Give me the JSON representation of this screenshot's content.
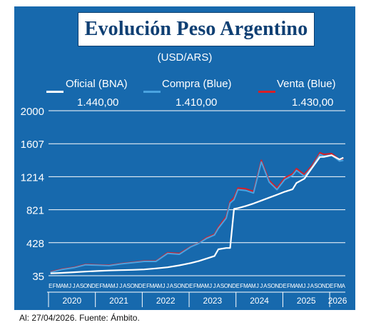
{
  "header": {
    "title": "Evolución Peso Argentino",
    "unit": "(USD/ARS)"
  },
  "legend": [
    {
      "name": "Oficial (BNA)",
      "value": "1.440,00",
      "color": "#ffffff"
    },
    {
      "name": "Compra (Blue)",
      "value": "1.410,00",
      "color": "#4aa3e0"
    },
    {
      "name": "Venta (Blue)",
      "value": "1.430,00",
      "color": "#d91f26"
    }
  ],
  "footer": {
    "source": "Al: 27/04/2026. Fuente: Ámbito."
  },
  "colors": {
    "panel": "#1769ad",
    "title_text": "#0f3f73",
    "oficial": "#ffffff",
    "compra": "#4aa3e0",
    "venta": "#d91f26",
    "grid": "#ffffff"
  },
  "chart_data": {
    "type": "line",
    "title": "Evolución Peso Argentino",
    "subtitle": "(USD/ARS)",
    "ylim": [
      35,
      2000
    ],
    "yticks": [
      35,
      428,
      821,
      1214,
      1607,
      2000
    ],
    "ytick_labels": [
      "35",
      "428",
      "821",
      "1214",
      "1607",
      "2000"
    ],
    "grid": true,
    "legend_position": "top",
    "x_months": [
      "E",
      "F",
      "M",
      "A",
      "M",
      "J",
      "J",
      "A",
      "S",
      "O",
      "N",
      "D"
    ],
    "years": [
      "2020",
      "2021",
      "2022",
      "2023",
      "2024",
      "2025",
      "2026"
    ],
    "x_last_year_months": [
      "E",
      "F",
      "M",
      "A"
    ],
    "x": [
      "2020-01",
      "2020-04",
      "2020-07",
      "2020-10",
      "2021-01",
      "2021-04",
      "2021-07",
      "2021-10",
      "2022-01",
      "2022-04",
      "2022-07",
      "2022-10",
      "2023-01",
      "2023-03",
      "2023-05",
      "2023-07",
      "2023-08",
      "2023-10",
      "2023-11",
      "2023-12",
      "2024-01",
      "2024-03",
      "2024-05",
      "2024-07",
      "2024-09",
      "2024-11",
      "2025-01",
      "2025-03",
      "2025-04",
      "2025-06",
      "2025-08",
      "2025-10",
      "2025-11",
      "2026-01",
      "2026-03",
      "2026-04"
    ],
    "series": [
      {
        "name": "Oficial (BNA)",
        "values": [
          63,
          69,
          77,
          84,
          91,
          97,
          101,
          105,
          110,
          122,
          135,
          158,
          186,
          210,
          240,
          270,
          350,
          365,
          366,
          830,
          840,
          865,
          895,
          930,
          965,
          1000,
          1035,
          1065,
          1140,
          1190,
          1320,
          1450,
          1450,
          1470,
          1420,
          1440
        ]
      },
      {
        "name": "Compra (Blue)",
        "values": [
          75,
          110,
          130,
          165,
          160,
          155,
          175,
          190,
          205,
          205,
          300,
          290,
          380,
          420,
          480,
          520,
          600,
          720,
          900,
          940,
          1060,
          1050,
          1020,
          1390,
          1150,
          1060,
          1180,
          1230,
          1290,
          1220,
          1330,
          1480,
          1460,
          1470,
          1400,
          1410
        ]
      },
      {
        "name": "Venta (Blue)",
        "values": [
          80,
          115,
          135,
          170,
          165,
          160,
          180,
          195,
          210,
          210,
          310,
          300,
          385,
          425,
          490,
          530,
          615,
          740,
          920,
          965,
          1080,
          1070,
          1040,
          1410,
          1170,
          1080,
          1200,
          1250,
          1310,
          1240,
          1350,
          1500,
          1480,
          1490,
          1420,
          1430
        ]
      }
    ]
  }
}
